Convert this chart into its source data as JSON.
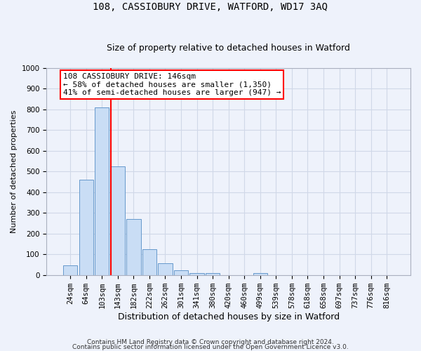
{
  "title": "108, CASSIOBURY DRIVE, WATFORD, WD17 3AQ",
  "subtitle": "Size of property relative to detached houses in Watford",
  "xlabel": "Distribution of detached houses by size in Watford",
  "ylabel": "Number of detached properties",
  "bar_labels": [
    "24sqm",
    "64sqm",
    "103sqm",
    "143sqm",
    "182sqm",
    "222sqm",
    "262sqm",
    "301sqm",
    "341sqm",
    "380sqm",
    "420sqm",
    "460sqm",
    "499sqm",
    "539sqm",
    "578sqm",
    "618sqm",
    "658sqm",
    "697sqm",
    "737sqm",
    "776sqm",
    "816sqm"
  ],
  "bar_values": [
    45,
    460,
    810,
    525,
    270,
    125,
    58,
    22,
    10,
    10,
    0,
    0,
    8,
    0,
    0,
    0,
    0,
    0,
    0,
    0,
    0
  ],
  "bar_color": "#c9ddf5",
  "bar_edge_color": "#6699cc",
  "annotation_box_text": "108 CASSIOBURY DRIVE: 146sqm\n← 58% of detached houses are smaller (1,350)\n41% of semi-detached houses are larger (947) →",
  "annotation_box_color": "white",
  "annotation_box_edge_color": "red",
  "vline_color": "red",
  "vline_bar_index": 3,
  "ylim": [
    0,
    1000
  ],
  "yticks": [
    0,
    100,
    200,
    300,
    400,
    500,
    600,
    700,
    800,
    900,
    1000
  ],
  "footer1": "Contains HM Land Registry data © Crown copyright and database right 2024.",
  "footer2": "Contains public sector information licensed under the Open Government Licence v3.0.",
  "bg_color": "#eef2fb",
  "grid_color": "#d0d8e8",
  "title_fontsize": 10,
  "subtitle_fontsize": 9,
  "tick_fontsize": 7.5,
  "ylabel_fontsize": 8,
  "xlabel_fontsize": 9,
  "footer_fontsize": 6.5,
  "annot_fontsize": 8
}
